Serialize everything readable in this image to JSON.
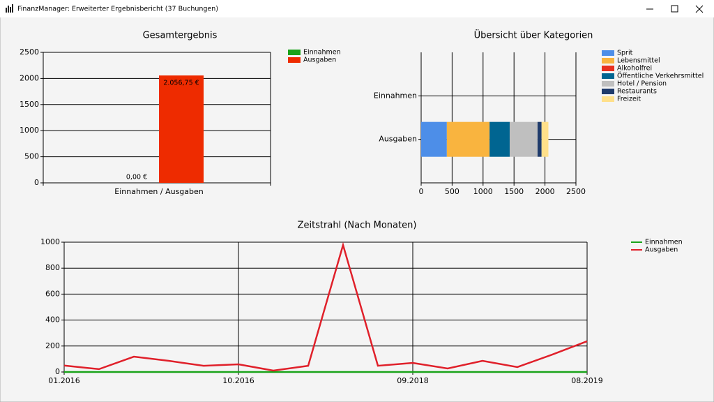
{
  "window": {
    "title": "FinanzManager: Erweiterter Ergebnisbericht (37 Buchungen)"
  },
  "chart_data": [
    {
      "type": "bar",
      "title": "Gesamtergebnis",
      "categories": [
        "Einnahmen / Ausgaben"
      ],
      "series": [
        {
          "name": "Einnahmen",
          "color": "#1aa31a",
          "values": [
            0
          ],
          "value_labels": [
            "0,00 €"
          ]
        },
        {
          "name": "Ausgaben",
          "color": "#ee2b00",
          "values": [
            2056.75
          ],
          "value_labels": [
            "2.056,75 €"
          ]
        }
      ],
      "ylim": [
        0,
        2500
      ],
      "yticks": [
        0,
        500,
        1000,
        1500,
        2000,
        2500
      ],
      "grid": true,
      "legend": "right"
    },
    {
      "type": "hbar",
      "title": "Übersicht über Kategorien",
      "stacked": true,
      "categories": [
        "Einnahmen",
        "Ausgaben"
      ],
      "series": [
        {
          "name": "Sprit",
          "color": "#4d8ee8",
          "values": [
            0,
            415
          ]
        },
        {
          "name": "Lebensmittel",
          "color": "#f9b43f",
          "values": [
            0,
            690
          ]
        },
        {
          "name": "Alkoholfrei",
          "color": "#e8301f",
          "values": [
            0,
            0
          ]
        },
        {
          "name": "Öffentliche Verkehrsmittel",
          "color": "#006591",
          "values": [
            0,
            325
          ]
        },
        {
          "name": "Hotel / Pension",
          "color": "#bfbfbf",
          "values": [
            0,
            450
          ]
        },
        {
          "name": "Restaurants",
          "color": "#1f3b6b",
          "values": [
            0,
            65
          ]
        },
        {
          "name": "Freizeit",
          "color": "#ffe08a",
          "values": [
            0,
            110
          ]
        }
      ],
      "xlim": [
        0,
        2500
      ],
      "xticks": [
        0,
        500,
        1000,
        1500,
        2000,
        2500
      ],
      "grid": true,
      "legend": "right"
    },
    {
      "type": "line",
      "title": "Zeitstrahl (Nach Monaten)",
      "categories": [
        "01.2016",
        null,
        null,
        null,
        null,
        "10.2016",
        null,
        null,
        null,
        null,
        "09.2018",
        null,
        null,
        null,
        null,
        "08.2019"
      ],
      "series": [
        {
          "name": "Einnahmen",
          "color": "#1aa31a",
          "values": [
            0,
            0,
            0,
            0,
            0,
            0,
            0,
            0,
            0,
            0,
            0,
            0,
            0,
            0,
            0,
            0
          ]
        },
        {
          "name": "Ausgaben",
          "color": "#e0202a",
          "values": [
            50,
            22,
            118,
            86,
            48,
            59,
            11,
            48,
            978,
            48,
            70,
            27,
            86,
            38,
            134,
            237
          ]
        }
      ],
      "ylim": [
        0,
        1000
      ],
      "yticks": [
        0,
        200,
        400,
        600,
        800,
        1000
      ],
      "grid": true,
      "legend": "right"
    }
  ]
}
